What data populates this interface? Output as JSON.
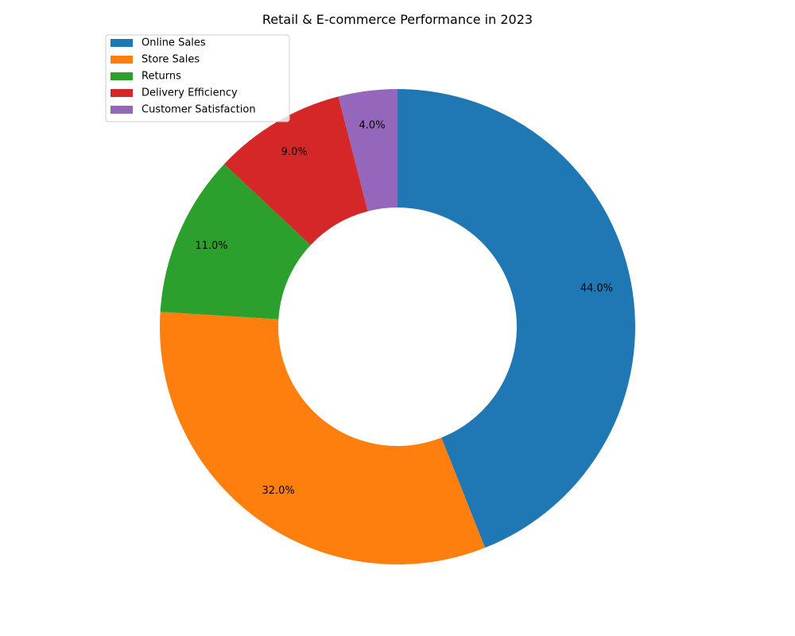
{
  "chart_data": {
    "type": "pie",
    "style": "donut",
    "title": "Retail & E-commerce Performance in 2023",
    "categories": [
      "Online Sales",
      "Store Sales",
      "Returns",
      "Delivery Efficiency",
      "Customer Satisfaction"
    ],
    "values": [
      44,
      32,
      11,
      9,
      4
    ],
    "value_labels": [
      "44.0%",
      "32.0%",
      "11.0%",
      "9.0%",
      "4.0%"
    ],
    "colors": [
      "#1f77b4",
      "#ff7f0e",
      "#2ca02c",
      "#d62728",
      "#9467bd"
    ],
    "start": "12 o'clock",
    "direction": "clockwise",
    "legend_position": "top-left"
  }
}
